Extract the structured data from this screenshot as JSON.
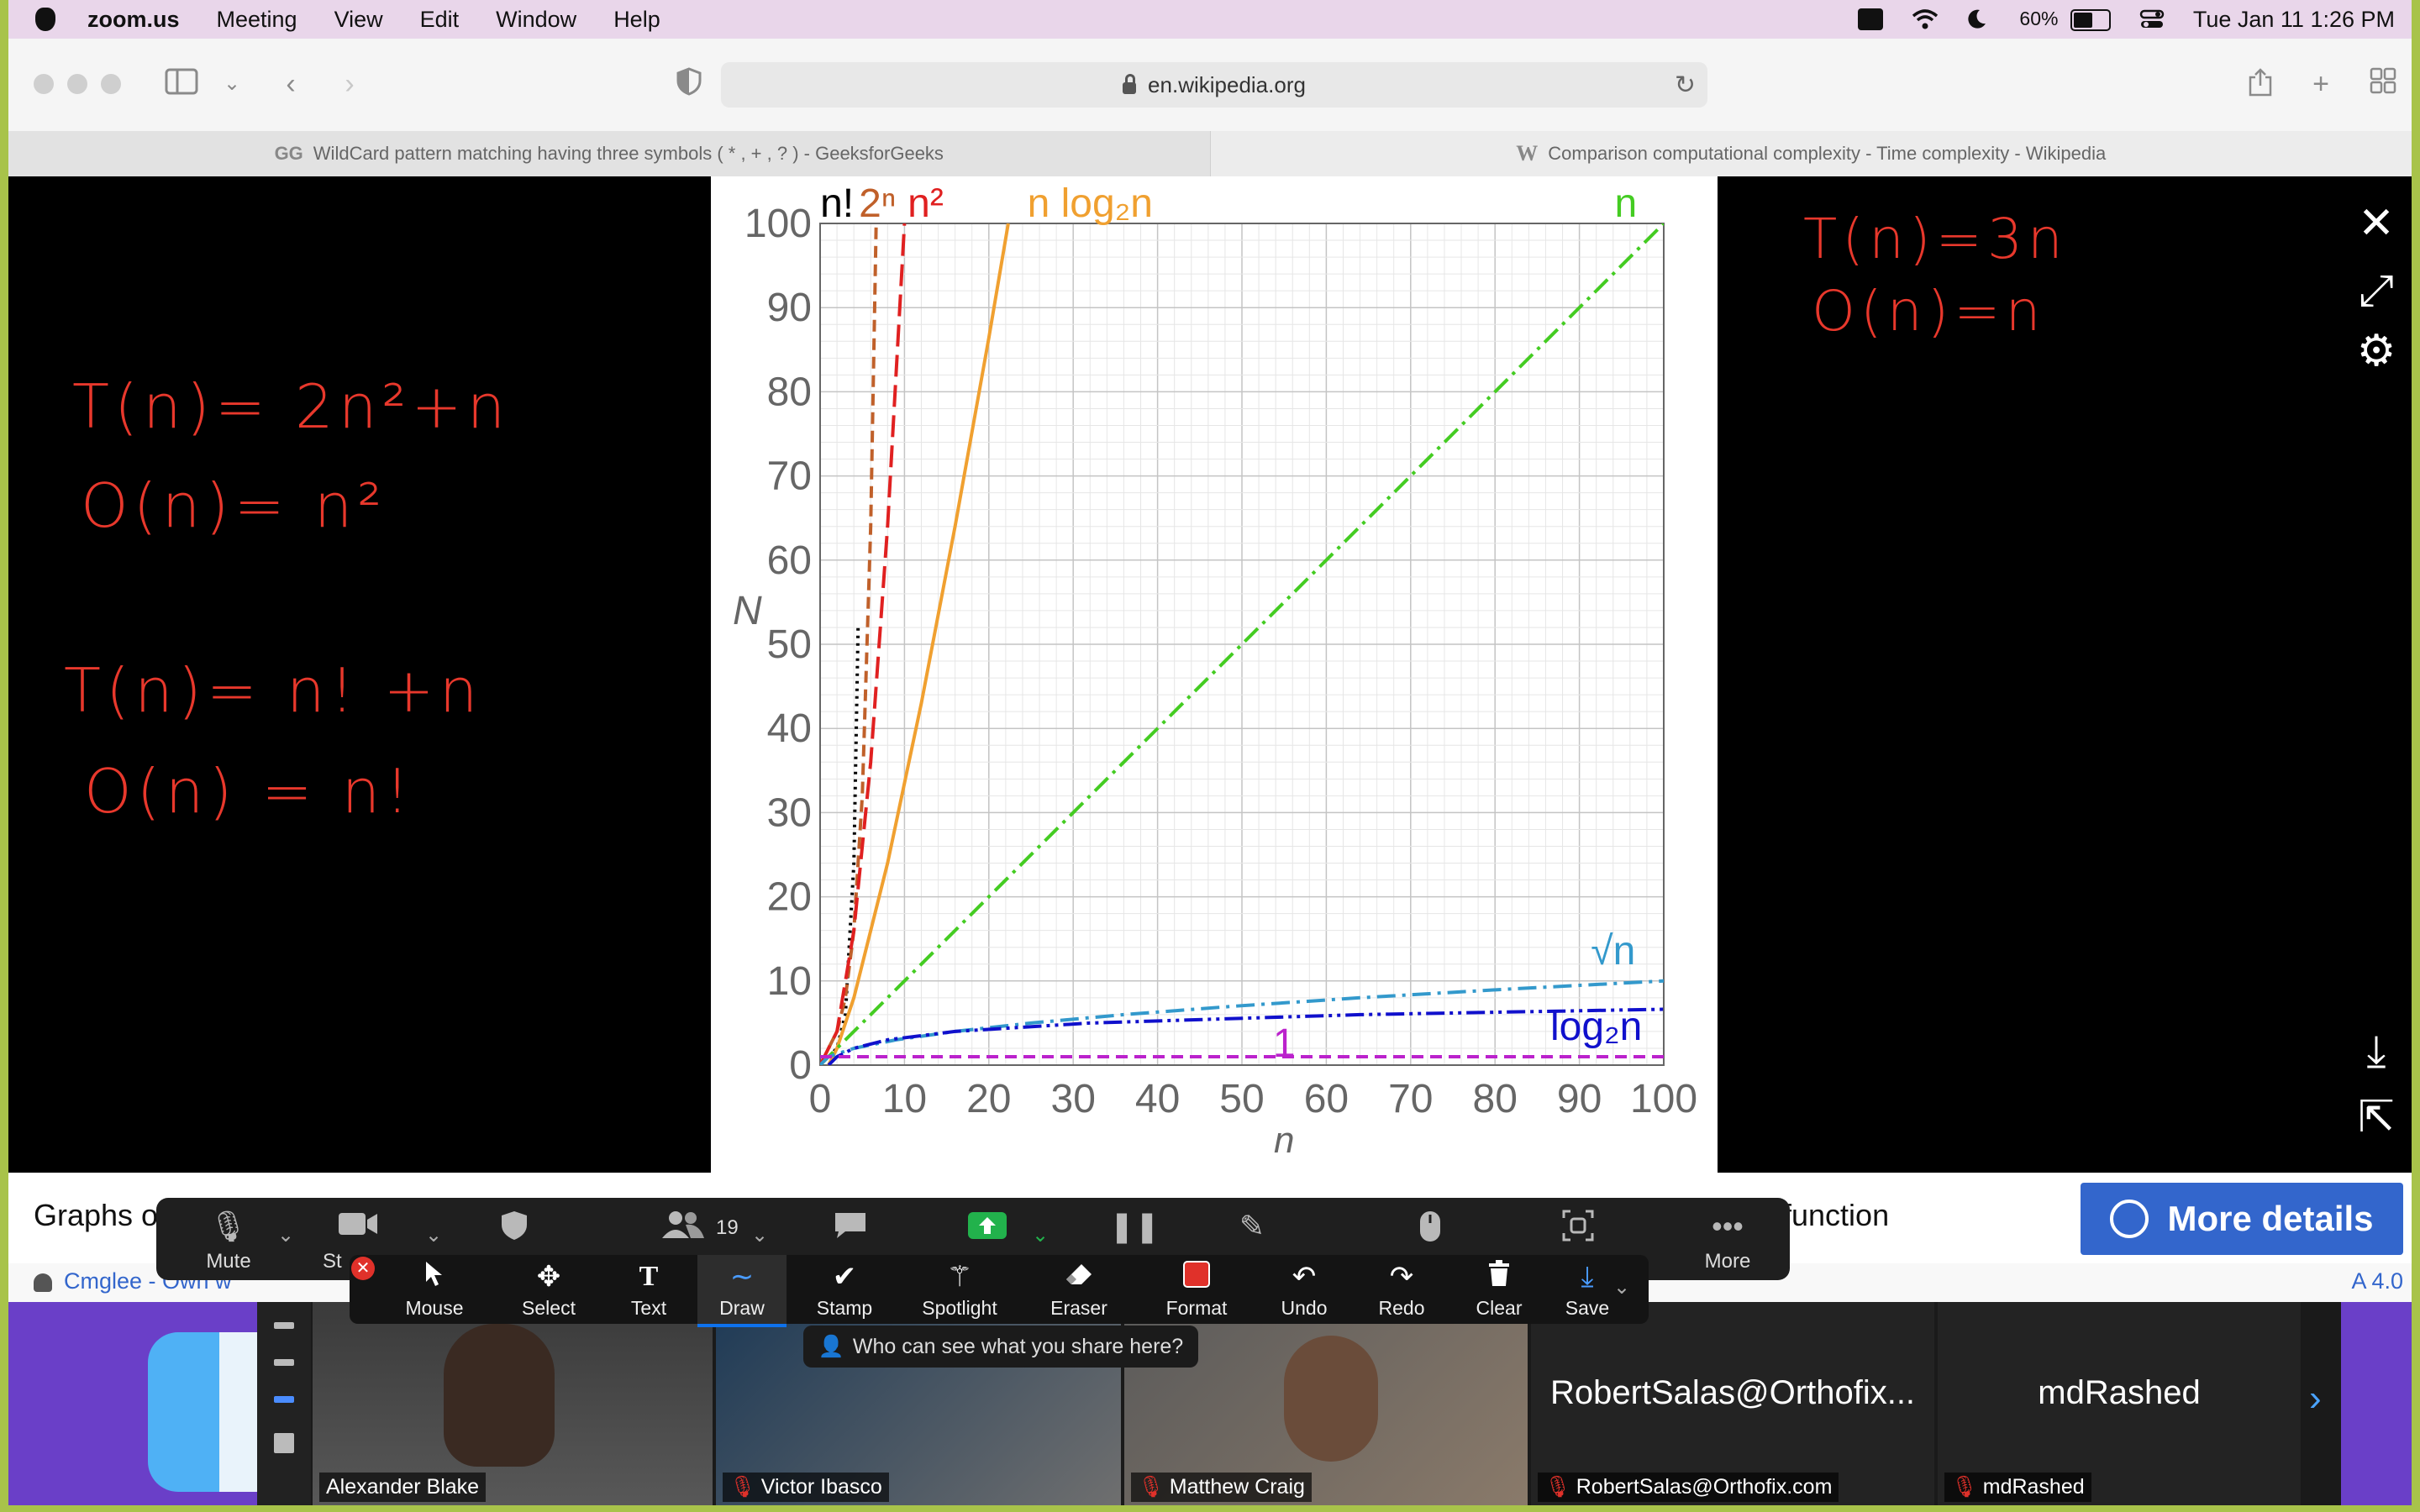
{
  "menubar": {
    "app": "zoom.us",
    "menus": [
      "Meeting",
      "View",
      "Edit",
      "Window",
      "Help"
    ],
    "battery": "60%",
    "battery_level": 0.6,
    "datetime": "Tue Jan 11  1:26 PM"
  },
  "browser": {
    "url": "en.wikipedia.org",
    "tabs": [
      {
        "label": "WildCard pattern matching having three symbols ( * , + , ? ) - GeeksforGeeks",
        "icon": "GG",
        "active": false
      },
      {
        "label": "Comparison computational complexity - Time complexity - Wikipedia",
        "icon": "W",
        "active": true
      }
    ]
  },
  "notes": {
    "left": [
      "T(n)= 2n²+n",
      "O(n)= n²",
      "T(n)= n! +n",
      "O(n) = n!"
    ],
    "right": [
      "T(n)=3n",
      "O(n)=n"
    ]
  },
  "chart_data": {
    "type": "line",
    "xlabel": "n",
    "ylabel": "N",
    "xlim": [
      0,
      100
    ],
    "ylim": [
      0,
      100
    ],
    "xticks": [
      0,
      10,
      20,
      30,
      40,
      50,
      60,
      70,
      80,
      90,
      100
    ],
    "yticks": [
      0,
      10,
      20,
      30,
      40,
      50,
      60,
      70,
      80,
      90,
      100
    ],
    "grid": true,
    "series": [
      {
        "name": "n!",
        "color": "#000000",
        "dash": "dotted",
        "x": [
          1,
          2,
          3,
          4,
          4.5
        ],
        "y": [
          1,
          2,
          6,
          24,
          52
        ]
      },
      {
        "name": "2ⁿ",
        "color": "#c0602a",
        "dash": "dashed",
        "x": [
          1,
          2,
          3,
          4,
          5,
          6,
          6.64
        ],
        "y": [
          2,
          4,
          8,
          16,
          32,
          64,
          100
        ]
      },
      {
        "name": "n²",
        "color": "#e02020",
        "dash": "longdash",
        "x": [
          0,
          2,
          4,
          6,
          8,
          10
        ],
        "y": [
          0,
          4,
          16,
          36,
          64,
          100
        ]
      },
      {
        "name": "n log₂n",
        "color": "#f0a030",
        "dash": "solid",
        "x": [
          1,
          2,
          4,
          8,
          12,
          16,
          20,
          22.3
        ],
        "y": [
          0,
          2,
          8,
          24,
          43,
          64,
          86.4,
          100
        ]
      },
      {
        "name": "n",
        "color": "#44cc22",
        "dash": "dashdot",
        "x": [
          0,
          100
        ],
        "y": [
          0,
          100
        ]
      },
      {
        "name": "√n",
        "color": "#3399cc",
        "dash": "dashdot",
        "x": [
          0,
          1,
          4,
          9,
          16,
          25,
          36,
          49,
          64,
          81,
          100
        ],
        "y": [
          0,
          1,
          2,
          3,
          4,
          5,
          6,
          7,
          8,
          9,
          10
        ]
      },
      {
        "name": "log₂n",
        "color": "#1010cc",
        "dash": "dashdotdot",
        "x": [
          1,
          2,
          4,
          8,
          16,
          32,
          64,
          100
        ],
        "y": [
          0,
          1,
          2,
          3,
          4,
          5,
          6,
          6.64
        ]
      },
      {
        "name": "1",
        "color": "#bb22cc",
        "dash": "dashed",
        "x": [
          0,
          100
        ],
        "y": [
          1,
          1
        ]
      }
    ]
  },
  "wiki": {
    "caption_left": "Graphs o",
    "caption_right": "function",
    "more_details": "More details",
    "credit": "Cmglee - Own w",
    "license": "A 4.0"
  },
  "zoom_controls": {
    "mute": "Mute",
    "start_video_partial": "St",
    "participants_count": "19",
    "more": "More"
  },
  "annotate": {
    "tools": [
      "Mouse",
      "Select",
      "Text",
      "Draw",
      "Stamp",
      "Spotlight",
      "Eraser",
      "Format",
      "Undo",
      "Redo",
      "Clear",
      "Save"
    ],
    "selected": "Draw",
    "share_note": "Who can see what you share here?"
  },
  "participants": [
    {
      "name": "Alexander Blake",
      "muted": false
    },
    {
      "name": "Victor Ibasco",
      "muted": true
    },
    {
      "name": "Matthew Craig",
      "muted": true
    },
    {
      "display": "RobertSalas@Orthofix...",
      "name": "RobertSalas@Orthofix.com",
      "muted": true
    },
    {
      "display": "mdRashed",
      "name": "mdRashed",
      "muted": true
    }
  ],
  "colors": {
    "note_red": "#e8382c",
    "zoom_blue": "#0e72ed",
    "wiki_blue": "#3366cc",
    "share_green": "#22b24c"
  }
}
